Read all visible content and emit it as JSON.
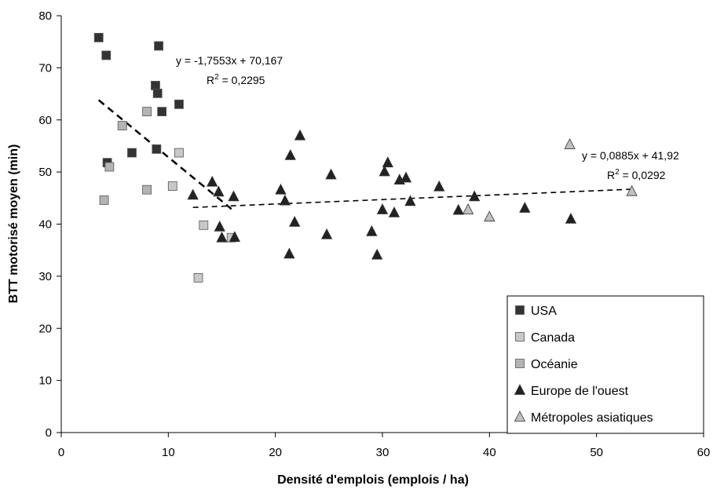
{
  "chart_data": {
    "type": "scatter",
    "title": "",
    "xlabel": "Densité d'emplois (emplois / ha)",
    "ylabel": "BTT motorisé moyen (min)",
    "xlim": [
      0,
      60
    ],
    "ylim": [
      0,
      80
    ],
    "xticks": [
      "0",
      "10",
      "20",
      "30",
      "40",
      "50",
      "60"
    ],
    "yticks": [
      "0",
      "10",
      "20",
      "30",
      "40",
      "50",
      "60",
      "70",
      "80"
    ],
    "grid": false,
    "legend_position": "bottom-right",
    "series": [
      {
        "name": "USA",
        "marker": "square",
        "color": "#333333",
        "points": [
          [
            3.5,
            75.8
          ],
          [
            4.2,
            72.4
          ],
          [
            9.1,
            74.2
          ],
          [
            8.8,
            66.6
          ],
          [
            9.0,
            65.1
          ],
          [
            11.0,
            63.0
          ],
          [
            9.4,
            61.6
          ],
          [
            6.6,
            53.7
          ],
          [
            8.9,
            54.4
          ],
          [
            4.3,
            51.8
          ]
        ]
      },
      {
        "name": "Canada",
        "marker": "square",
        "color": "#c8c8c8",
        "points": [
          [
            11.0,
            53.7
          ],
          [
            10.4,
            47.3
          ],
          [
            13.3,
            39.8
          ],
          [
            15.9,
            37.4
          ],
          [
            12.8,
            29.7
          ]
        ]
      },
      {
        "name": "Océanie",
        "marker": "square",
        "color": "#b4b4b4",
        "points": [
          [
            8.0,
            61.6
          ],
          [
            5.7,
            58.9
          ],
          [
            4.5,
            51.0
          ],
          [
            8.0,
            46.6
          ],
          [
            4.0,
            44.6
          ]
        ]
      },
      {
        "name": "Europe de l'ouest",
        "marker": "triangle",
        "color": "#222222",
        "points": [
          [
            12.3,
            45.6
          ],
          [
            14.1,
            48.1
          ],
          [
            14.7,
            46.2
          ],
          [
            16.1,
            45.3
          ],
          [
            14.8,
            39.5
          ],
          [
            15.0,
            37.4
          ],
          [
            16.2,
            37.5
          ],
          [
            20.5,
            46.6
          ],
          [
            20.9,
            44.5
          ],
          [
            21.4,
            53.2
          ],
          [
            22.3,
            57.0
          ],
          [
            21.8,
            40.4
          ],
          [
            21.3,
            34.3
          ],
          [
            24.8,
            38.0
          ],
          [
            25.2,
            49.5
          ],
          [
            29.0,
            38.6
          ],
          [
            29.5,
            34.1
          ],
          [
            30.0,
            42.8
          ],
          [
            30.2,
            50.1
          ],
          [
            30.5,
            51.8
          ],
          [
            31.1,
            42.2
          ],
          [
            31.6,
            48.5
          ],
          [
            32.2,
            48.9
          ],
          [
            32.6,
            44.4
          ],
          [
            35.3,
            47.2
          ],
          [
            37.1,
            42.7
          ],
          [
            38.6,
            45.3
          ],
          [
            43.3,
            43.1
          ],
          [
            47.6,
            41.0
          ]
        ]
      },
      {
        "name": "Métropoles asiatiques",
        "marker": "triangle",
        "color": "#c0c0c0",
        "points": [
          [
            38.0,
            42.8
          ],
          [
            40.0,
            41.4
          ],
          [
            47.5,
            55.3
          ],
          [
            53.3,
            46.3
          ]
        ]
      }
    ],
    "trendlines": [
      {
        "x": [
          3.5,
          15.9
        ],
        "y": [
          63.8,
          42.9
        ],
        "style": "dashed",
        "width": "thick"
      },
      {
        "x": [
          12.3,
          53.3
        ],
        "y": [
          43.2,
          46.7
        ],
        "style": "dashed",
        "width": "thin"
      }
    ],
    "annotations": [
      {
        "equation": "y = -1,7553x + 70,167",
        "r2_prefix": "R",
        "r2_exp": "2",
        "r2_value": " = 0,2295"
      },
      {
        "equation": "y = 0,0885x + 41,92",
        "r2_prefix": "R",
        "r2_exp": "2",
        "r2_value": " = 0,0292"
      }
    ]
  }
}
